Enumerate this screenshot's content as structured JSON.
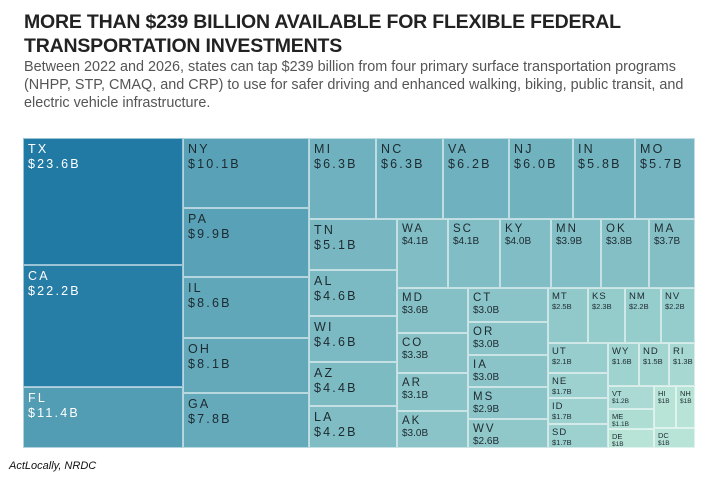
{
  "header": {
    "title": "MORE THAN $239 BILLION AVAILABLE FOR FLEXIBLE FEDERAL TRANSPORTATION INVESTMENTS",
    "subtitle": "Between 2022 and 2026, states can tap $239 billion from four primary surface transportation programs (NHPP, STP, CMAQ, and CRP) to use for safer driving and enhanced walking, biking, public transit, and electric vehicle infrastructure."
  },
  "source": "ActLocally, NRDC",
  "chart_data": {
    "type": "treemap",
    "title": "MORE THAN $239 BILLION AVAILABLE FOR FLEXIBLE FEDERAL TRANSPORTATION INVESTMENTS",
    "unit": "billion USD",
    "total": 239,
    "color_scale": [
      "#217aa3",
      "#b8e4d8"
    ],
    "items": [
      {
        "state": "TX",
        "value": 23.6,
        "label": "$23.6B"
      },
      {
        "state": "CA",
        "value": 22.2,
        "label": "$22.2B"
      },
      {
        "state": "FL",
        "value": 11.4,
        "label": "$11.4B"
      },
      {
        "state": "NY",
        "value": 10.1,
        "label": "$10.1B"
      },
      {
        "state": "PA",
        "value": 9.9,
        "label": "$9.9B"
      },
      {
        "state": "IL",
        "value": 8.6,
        "label": "$8.6B"
      },
      {
        "state": "OH",
        "value": 8.1,
        "label": "$8.1B"
      },
      {
        "state": "GA",
        "value": 7.8,
        "label": "$7.8B"
      },
      {
        "state": "MI",
        "value": 6.3,
        "label": "$6.3B"
      },
      {
        "state": "NC",
        "value": 6.3,
        "label": "$6.3B"
      },
      {
        "state": "VA",
        "value": 6.2,
        "label": "$6.2B"
      },
      {
        "state": "NJ",
        "value": 6.0,
        "label": "$6.0B"
      },
      {
        "state": "IN",
        "value": 5.8,
        "label": "$5.8B"
      },
      {
        "state": "MO",
        "value": 5.7,
        "label": "$5.7B"
      },
      {
        "state": "TN",
        "value": 5.1,
        "label": "$5.1B"
      },
      {
        "state": "AL",
        "value": 4.6,
        "label": "$4.6B"
      },
      {
        "state": "WI",
        "value": 4.6,
        "label": "$4.6B"
      },
      {
        "state": "AZ",
        "value": 4.4,
        "label": "$4.4B"
      },
      {
        "state": "LA",
        "value": 4.2,
        "label": "$4.2B"
      },
      {
        "state": "WA",
        "value": 4.1,
        "label": "$4.1B"
      },
      {
        "state": "SC",
        "value": 4.1,
        "label": "$4.1B"
      },
      {
        "state": "KY",
        "value": 4.0,
        "label": "$4.0B"
      },
      {
        "state": "MN",
        "value": 3.9,
        "label": "$3.9B"
      },
      {
        "state": "OK",
        "value": 3.8,
        "label": "$3.8B"
      },
      {
        "state": "MA",
        "value": 3.7,
        "label": "$3.7B"
      },
      {
        "state": "MD",
        "value": 3.6,
        "label": "$3.6B"
      },
      {
        "state": "CO",
        "value": 3.3,
        "label": "$3.3B"
      },
      {
        "state": "AR",
        "value": 3.1,
        "label": "$3.1B"
      },
      {
        "state": "AK",
        "value": 3.0,
        "label": "$3.0B"
      },
      {
        "state": "CT",
        "value": 3.0,
        "label": "$3.0B"
      },
      {
        "state": "OR",
        "value": 3.0,
        "label": "$3.0B"
      },
      {
        "state": "IA",
        "value": 3.0,
        "label": "$3.0B"
      },
      {
        "state": "MS",
        "value": 2.9,
        "label": "$2.9B"
      },
      {
        "state": "WV",
        "value": 2.6,
        "label": "$2.6B"
      },
      {
        "state": "MT",
        "value": 2.5,
        "label": "$2.5B"
      },
      {
        "state": "KS",
        "value": 2.3,
        "label": "$2.3B"
      },
      {
        "state": "NM",
        "value": 2.2,
        "label": "$2.2B"
      },
      {
        "state": "NV",
        "value": 2.2,
        "label": "$2.2B"
      },
      {
        "state": "UT",
        "value": 2.1,
        "label": "$2.1B"
      },
      {
        "state": "NE",
        "value": 1.7,
        "label": "$1.7B"
      },
      {
        "state": "ID",
        "value": 1.7,
        "label": "$1.7B"
      },
      {
        "state": "SD",
        "value": 1.7,
        "label": "$1.7B"
      },
      {
        "state": "WY",
        "value": 1.6,
        "label": "$1.6B"
      },
      {
        "state": "ND",
        "value": 1.5,
        "label": "$1.5B"
      },
      {
        "state": "RI",
        "value": 1.3,
        "label": "$1.3B"
      },
      {
        "state": "VT",
        "value": 1.2,
        "label": "$1.2B"
      },
      {
        "state": "ME",
        "value": 1.1,
        "label": "$1.1B"
      },
      {
        "state": "DE",
        "value": 1.0,
        "label": "$1B"
      },
      {
        "state": "HI",
        "value": 1.0,
        "label": "$1B"
      },
      {
        "state": "NH",
        "value": 1.0,
        "label": "$1B"
      },
      {
        "state": "DC",
        "value": 1.0,
        "label": "$1B"
      }
    ]
  }
}
